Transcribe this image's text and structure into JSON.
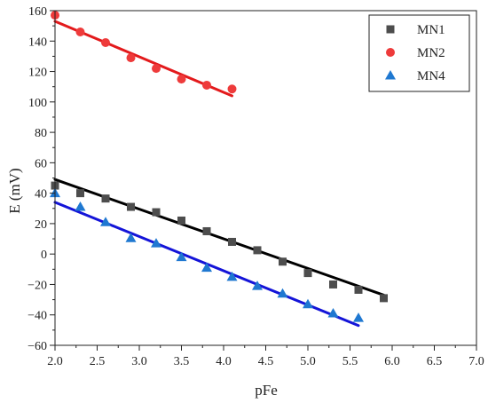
{
  "chart_data": {
    "type": "scatter",
    "xlabel": "pFe",
    "ylabel": "E (mV)",
    "xlim": [
      2.0,
      7.0
    ],
    "ylim": [
      -60,
      160
    ],
    "x_ticks": [
      "2.0",
      "2.5",
      "3.0",
      "3.5",
      "4.0",
      "4.5",
      "5.0",
      "5.5",
      "6.0",
      "6.5",
      "7.0"
    ],
    "y_ticks": [
      "−60",
      "−40",
      "−20",
      "0",
      "20",
      "40",
      "60",
      "80",
      "100",
      "120",
      "140",
      "160"
    ],
    "legend_position": "top-right",
    "series": [
      {
        "name": "MN1",
        "marker": "square",
        "color": "#4d4d4d",
        "fit_color": "#000000",
        "x": [
          2.0,
          2.3,
          2.6,
          2.9,
          3.2,
          3.5,
          3.8,
          4.1,
          4.4,
          4.7,
          5.0,
          5.3,
          5.6,
          5.9
        ],
        "y": [
          45,
          40,
          36.5,
          31,
          27.5,
          22,
          15,
          8,
          2.5,
          -5,
          -12.5,
          -20,
          -23.5,
          -29
        ],
        "fit": [
          [
            2.0,
            49
          ],
          [
            5.9,
            -27
          ]
        ]
      },
      {
        "name": "MN2",
        "marker": "circle",
        "color": "#ee3b3b",
        "fit_color": "#e31a1c",
        "x": [
          2.0,
          2.3,
          2.6,
          2.9,
          3.2,
          3.5,
          3.8,
          4.1
        ],
        "y": [
          157,
          146,
          139,
          129,
          122,
          115,
          111,
          108.5
        ],
        "fit": [
          [
            2.0,
            153
          ],
          [
            4.1,
            104
          ]
        ]
      },
      {
        "name": "MN4",
        "marker": "triangle",
        "color": "#1f78d1",
        "fit_color": "#1414d8",
        "x": [
          2.0,
          2.3,
          2.6,
          2.9,
          3.2,
          3.5,
          3.8,
          4.1,
          4.4,
          4.7,
          5.0,
          5.3,
          5.6
        ],
        "y": [
          40,
          31,
          21,
          10.5,
          7,
          -2,
          -9,
          -15,
          -21,
          -26,
          -33,
          -39,
          -42
        ],
        "fit": [
          [
            2.0,
            34
          ],
          [
            5.6,
            -47
          ]
        ]
      }
    ]
  }
}
